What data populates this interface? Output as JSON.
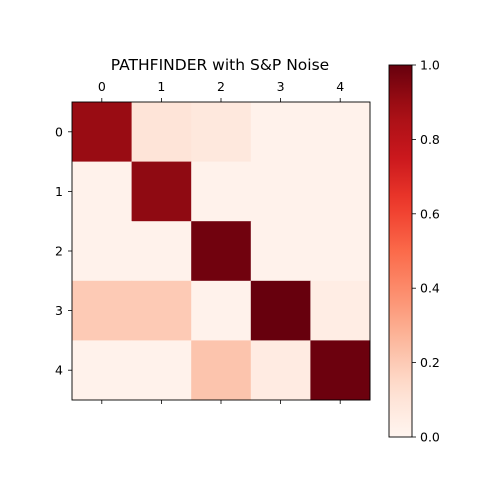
{
  "chart_data": {
    "type": "heatmap",
    "title": "PATHFINDER with S&P Noise",
    "x_tick_labels": [
      "0",
      "1",
      "2",
      "3",
      "4"
    ],
    "y_tick_labels": [
      "0",
      "1",
      "2",
      "3",
      "4"
    ],
    "x_axis_position": "top",
    "matrix": [
      [
        0.9,
        0.1,
        0.08,
        0.02,
        0.02
      ],
      [
        0.02,
        0.92,
        0.02,
        0.02,
        0.02
      ],
      [
        0.02,
        0.02,
        0.98,
        0.02,
        0.02
      ],
      [
        0.2,
        0.2,
        0.02,
        1.0,
        0.05
      ],
      [
        0.02,
        0.02,
        0.22,
        0.06,
        0.99
      ]
    ],
    "colormap": "Reds",
    "color_range": [
      0.0,
      1.0
    ],
    "colorbar": {
      "position": "right",
      "ticks": [
        0.0,
        0.2,
        0.4,
        0.6,
        0.8,
        1.0
      ],
      "tick_labels": [
        "0.0",
        "0.2",
        "0.4",
        "0.6",
        "0.8",
        "1.0"
      ]
    },
    "grid": false
  }
}
